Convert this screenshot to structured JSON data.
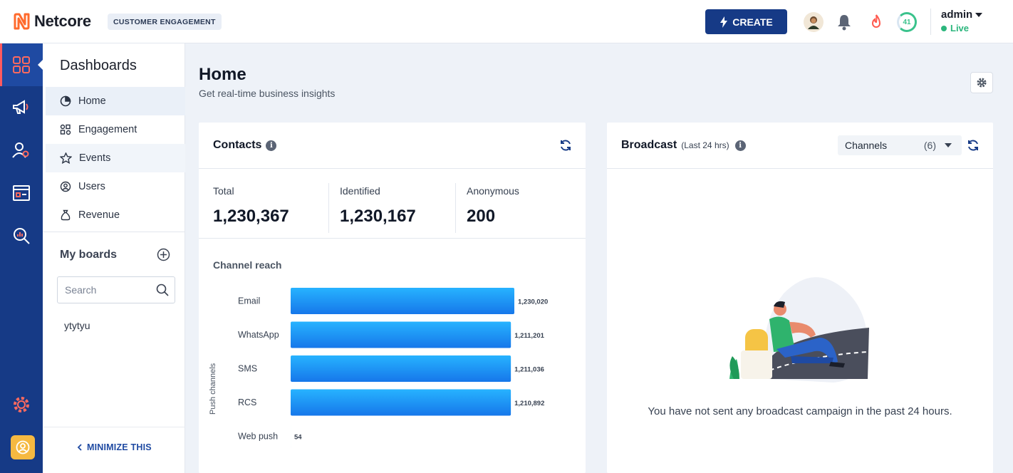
{
  "header": {
    "brand": "Netcore",
    "product_badge": "CUSTOMER ENGAGEMENT",
    "create_label": "CREATE",
    "score": "41",
    "user_name": "admin",
    "status": "Live",
    "colors": {
      "brand_navy": "#163a86",
      "live_green": "#2cb67d",
      "logo_orange": "#ff6a2c"
    }
  },
  "rail": {
    "items": [
      "dashboards-icon",
      "campaigns-icon",
      "audience-icon",
      "journeys-icon",
      "analytics-icon"
    ],
    "bottom": [
      "settings-icon",
      "user-profile-icon"
    ]
  },
  "subnav": {
    "title": "Dashboards",
    "items": [
      {
        "label": "Home",
        "icon": "home-pie-icon"
      },
      {
        "label": "Engagement",
        "icon": "engagement-icon"
      },
      {
        "label": "Events",
        "icon": "star-icon"
      },
      {
        "label": "Users",
        "icon": "users-icon"
      },
      {
        "label": "Revenue",
        "icon": "revenue-bag-icon"
      }
    ],
    "my_boards_title": "My boards",
    "search_placeholder": "Search",
    "boards": [
      "ytytyu"
    ],
    "minimize_label": "MINIMIZE THIS"
  },
  "main": {
    "title": "Home",
    "subtitle": "Get real-time business insights"
  },
  "contacts": {
    "title": "Contacts",
    "stats": [
      {
        "label": "Total",
        "value": "1,230,367"
      },
      {
        "label": "Identified",
        "value": "1,230,167"
      },
      {
        "label": "Anonymous",
        "value": "200"
      }
    ],
    "reach_title": "Channel reach"
  },
  "chart_data": {
    "type": "bar",
    "orientation": "horizontal",
    "title": "Channel reach",
    "ylabel": "Push channels",
    "categories": [
      "Email",
      "WhatsApp",
      "SMS",
      "RCS",
      "Web push"
    ],
    "values": [
      1230020,
      1211201,
      1211036,
      1210892,
      54
    ],
    "value_labels": [
      "1,230,020",
      "1,211,201",
      "1,211,036",
      "1,210,892",
      "54"
    ],
    "xlim": [
      0,
      1230020
    ],
    "bar_color": "#1a9cf4"
  },
  "broadcast": {
    "title": "Broadcast",
    "subtitle": "(Last 24 hrs)",
    "channels_label": "Channels",
    "channels_count": "(6)",
    "empty_message": "You have not sent any broadcast campaign in the past 24 hours."
  }
}
